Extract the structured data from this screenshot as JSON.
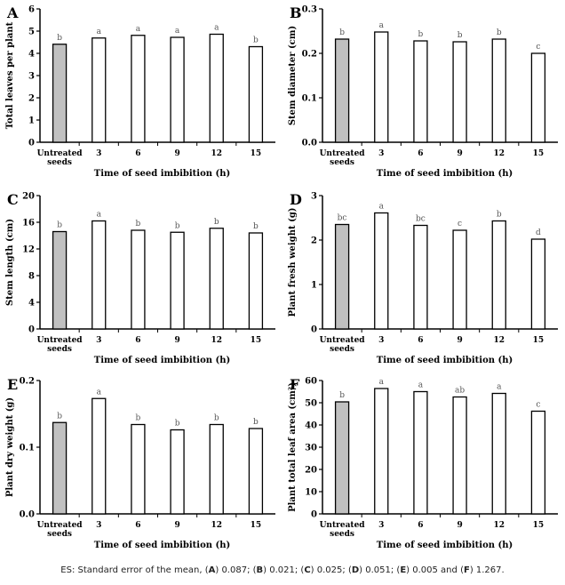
{
  "figure": {
    "caption_prefix": "ES: Standard error of the mean, ",
    "caption_parts": [
      {
        "label": "A",
        "value": "0.087",
        "sep": "; "
      },
      {
        "label": "B",
        "value": "0.021",
        "sep": "; "
      },
      {
        "label": "C",
        "value": "0.025",
        "sep": "; "
      },
      {
        "label": "D",
        "value": "0.051",
        "sep": "; "
      },
      {
        "label": "E",
        "value": "0.005",
        "sep": " and "
      },
      {
        "label": "F",
        "value": "1.267",
        "sep": "."
      }
    ],
    "colors": {
      "control_fill": "#c0c0c0",
      "treatment_fill": "#ffffff",
      "stroke": "#000000",
      "letter_color": "#555555"
    }
  },
  "chart_data": [
    {
      "panel": "A",
      "type": "bar",
      "categories": [
        "Untreated\nseeds",
        "3",
        "6",
        "9",
        "12",
        "15"
      ],
      "values": [
        4.41,
        4.69,
        4.81,
        4.72,
        4.86,
        4.3
      ],
      "letters": [
        "b",
        "a",
        "a",
        "a",
        "a",
        "b"
      ],
      "xlabel": "Time of seed imbibition (h)",
      "ylabel": "Total leaves per plant",
      "ylim": [
        0,
        6
      ],
      "yticks": [
        "0",
        "1",
        "2",
        "3",
        "4",
        "5",
        "6"
      ],
      "grid": false
    },
    {
      "panel": "B",
      "type": "bar",
      "categories": [
        "Untreated\nseeds",
        "3",
        "6",
        "9",
        "12",
        "15"
      ],
      "values": [
        0.232,
        0.248,
        0.228,
        0.226,
        0.232,
        0.2
      ],
      "letters": [
        "b",
        "a",
        "b",
        "b",
        "b",
        "c"
      ],
      "xlabel": "Time of seed imbibition (h)",
      "ylabel": "Stem diameter (cm)",
      "ylim": [
        0,
        0.3
      ],
      "yticks": [
        "0.0",
        "0.1",
        "0.2",
        "0.3"
      ],
      "grid": false
    },
    {
      "panel": "C",
      "type": "bar",
      "categories": [
        "Untreated\nseeds",
        "3",
        "6",
        "9",
        "12",
        "15"
      ],
      "values": [
        14.6,
        16.2,
        14.8,
        14.5,
        15.1,
        14.4
      ],
      "letters": [
        "b",
        "a",
        "b",
        "b",
        "b",
        "b"
      ],
      "xlabel": "Time of seed imbibition (h)",
      "ylabel": "Stem length (cm)",
      "ylim": [
        0,
        20
      ],
      "yticks": [
        "0",
        "4",
        "8",
        "12",
        "16",
        "20"
      ],
      "grid": false
    },
    {
      "panel": "D",
      "type": "bar",
      "categories": [
        "Untreated\nseeds",
        "3",
        "6",
        "9",
        "12",
        "15"
      ],
      "values": [
        2.35,
        2.61,
        2.33,
        2.22,
        2.43,
        2.02
      ],
      "letters": [
        "bc",
        "a",
        "bc",
        "c",
        "b",
        "d"
      ],
      "xlabel": "Time of seed imbibition (h)",
      "ylabel": "Plant fresh weight (g)",
      "ylim": [
        0,
        3
      ],
      "yticks": [
        "0",
        "1",
        "2",
        "3"
      ],
      "grid": false
    },
    {
      "panel": "E",
      "type": "bar",
      "categories": [
        "Untreated\nseeds",
        "3",
        "6",
        "9",
        "12",
        "15"
      ],
      "values": [
        0.137,
        0.173,
        0.134,
        0.126,
        0.134,
        0.128
      ],
      "letters": [
        "b",
        "a",
        "b",
        "b",
        "b",
        "b"
      ],
      "xlabel": "Time of seed imbibition (h)",
      "ylabel": "Plant dry weight (g)",
      "ylim": [
        0,
        0.2
      ],
      "yticks": [
        "0.0",
        "0.1",
        "0.2"
      ],
      "grid": false
    },
    {
      "panel": "F",
      "type": "bar",
      "categories": [
        "Untreated\nseeds",
        "3",
        "6",
        "9",
        "12",
        "15"
      ],
      "values": [
        50.4,
        56.4,
        55.0,
        52.6,
        54.2,
        46.2
      ],
      "letters": [
        "b",
        "a",
        "a",
        "ab",
        "a",
        "c"
      ],
      "xlabel": "Time of seed imbibition (h)",
      "ylabel": "Plant total leaf area (cm²)",
      "ylim": [
        0,
        60
      ],
      "yticks": [
        "0",
        "10",
        "20",
        "30",
        "40",
        "50",
        "60"
      ],
      "grid": false
    }
  ]
}
